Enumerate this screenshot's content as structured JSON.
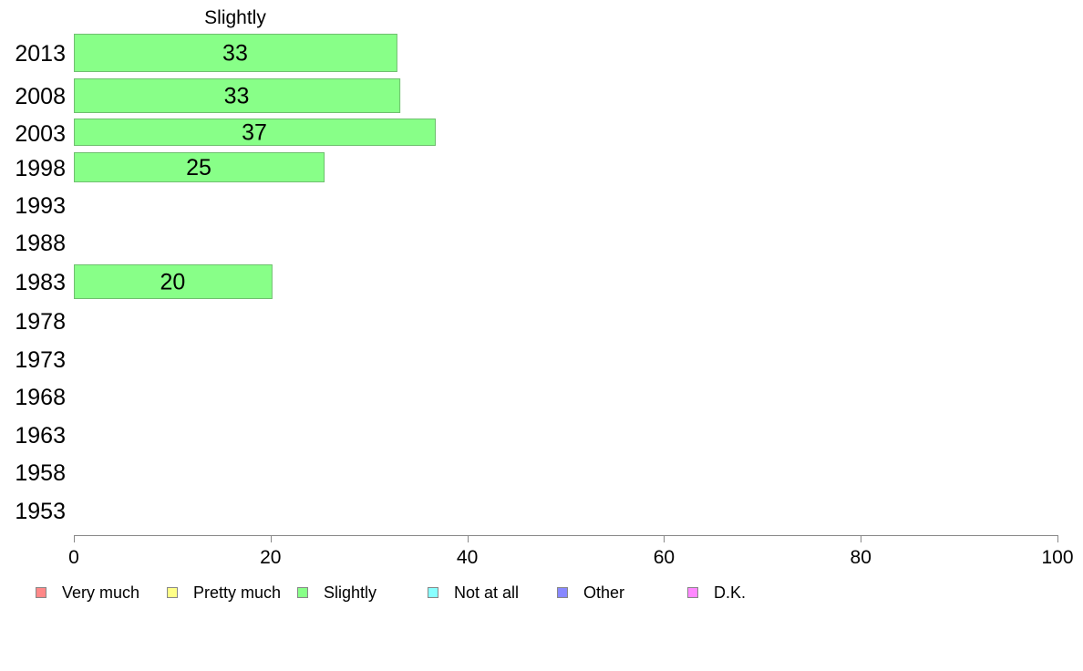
{
  "chart_data": {
    "type": "bar",
    "orientation": "horizontal",
    "title": "Slightly",
    "categories": [
      "2013",
      "2008",
      "2003",
      "1998",
      "1993",
      "1988",
      "1983",
      "1978",
      "1973",
      "1968",
      "1963",
      "1958",
      "1953"
    ],
    "series": [
      {
        "name": "Slightly",
        "color": "#88ff88",
        "values": [
          33,
          33,
          37,
          25,
          null,
          null,
          20,
          null,
          null,
          null,
          null,
          null,
          null
        ],
        "exact_values": [
          32.8,
          33.1,
          36.7,
          25.4,
          null,
          null,
          20.1,
          null,
          null,
          null,
          null,
          null,
          null
        ]
      }
    ],
    "xlim": [
      0,
      100
    ],
    "xticks": [
      0,
      20,
      40,
      60,
      80,
      100
    ],
    "grid": false,
    "legend_position": "bottom",
    "legend": [
      {
        "label": "Very much",
        "color": "#ff8888"
      },
      {
        "label": "Pretty much",
        "color": "#ffff88"
      },
      {
        "label": "Slightly",
        "color": "#88ff88"
      },
      {
        "label": "Not at all",
        "color": "#88ffff"
      },
      {
        "label": "Other",
        "color": "#8888ff"
      },
      {
        "label": "D.K.",
        "color": "#ff88ff"
      }
    ]
  }
}
